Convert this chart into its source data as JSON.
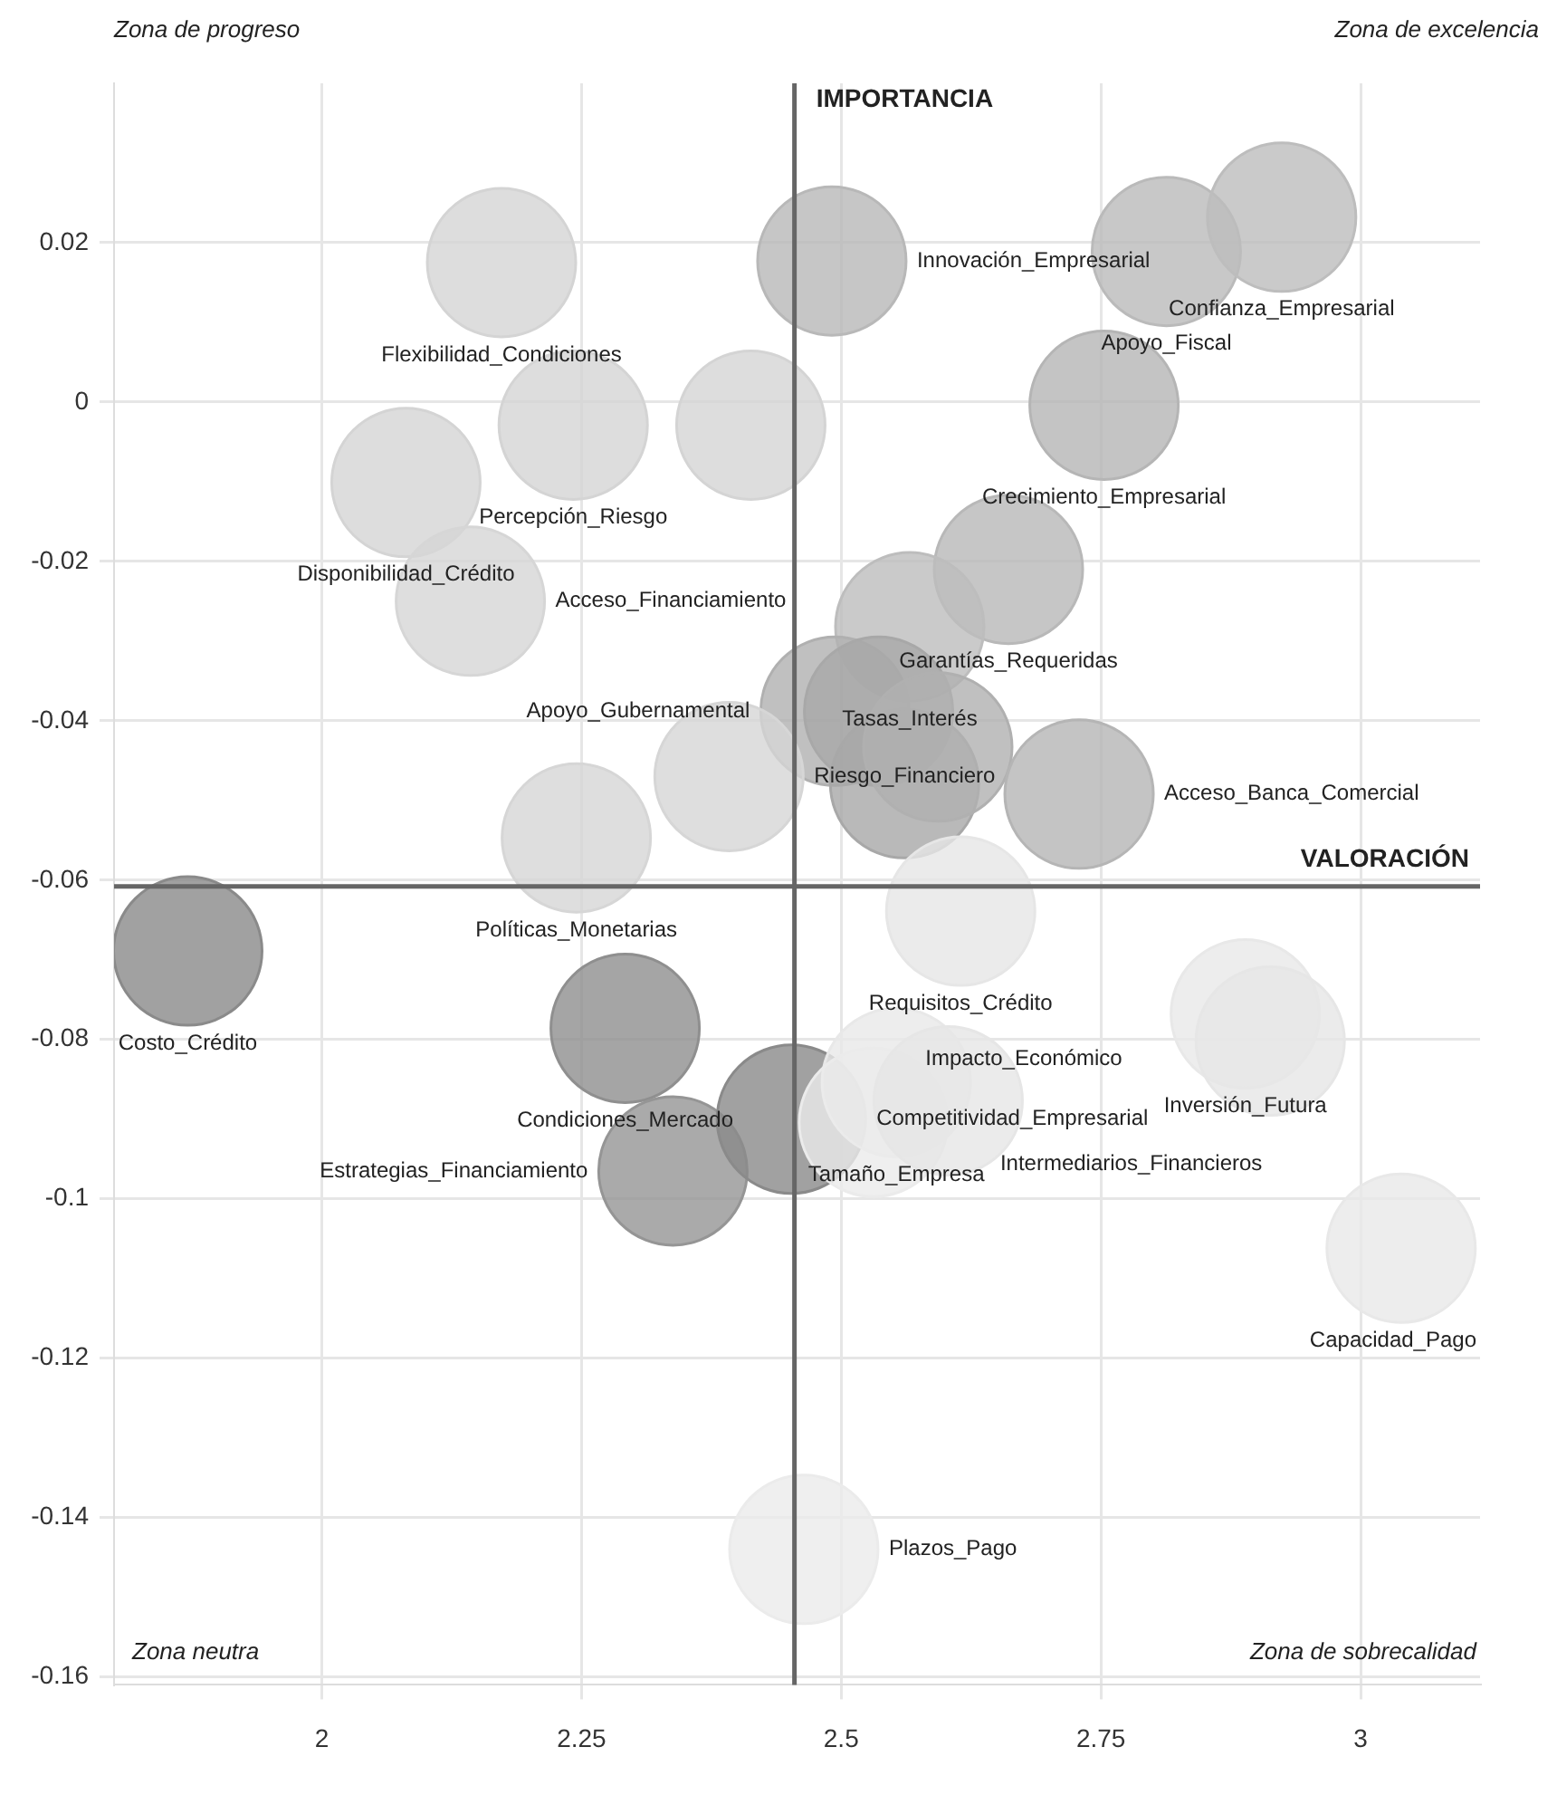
{
  "chart_data": {
    "type": "bubble",
    "x": [
      2.491,
      2.813,
      2.924,
      2.753,
      2.661,
      2.566,
      2.494,
      2.536,
      2.561,
      2.593,
      2.729,
      2.413,
      2.173,
      2.242,
      2.081,
      2.143,
      2.392,
      2.245,
      1.871,
      2.292,
      2.338,
      2.452,
      2.615,
      2.553,
      2.531,
      2.603,
      2.889,
      2.913,
      3.039,
      2.464
    ],
    "values": [
      0.0177,
      0.0189,
      0.0232,
      -0.0004,
      -0.021,
      -0.0282,
      -0.0388,
      -0.0388,
      -0.0479,
      -0.0433,
      -0.0492,
      -0.0029,
      0.0175,
      -0.0029,
      -0.0101,
      -0.025,
      -0.047,
      -0.0547,
      -0.0689,
      -0.0786,
      -0.0965,
      -0.09,
      -0.0639,
      -0.0854,
      -0.0904,
      -0.0877,
      -0.0768,
      -0.0802,
      -0.1062,
      -0.144
    ],
    "sizes": [
      1,
      1,
      1,
      1,
      1,
      1,
      1,
      1,
      1,
      1,
      1,
      1,
      1,
      1,
      1,
      1,
      1,
      1,
      1,
      1,
      1,
      1,
      1,
      1,
      1,
      1,
      1,
      1,
      1,
      1
    ],
    "colors": [
      "#b8b8b8",
      "#bababa",
      "#bdbdbd",
      "#b5b5b5",
      "#b8b8b8",
      "#bdbdbd",
      "#b0b0b0",
      "#a8a8a8",
      "#a8a8a8",
      "#b0b0b0",
      "#b5b5b5",
      "#d4d4d4",
      "#d4d4d4",
      "#d4d4d4",
      "#d4d4d4",
      "#d6d6d6",
      "#d6d6d6",
      "#d6d6d6",
      "#8a8a8a",
      "#8f8f8f",
      "#959595",
      "#8a8a8a",
      "#e6e6e6",
      "#e8e8e8",
      "#ebebeb",
      "#e6e6e6",
      "#e8e8e8",
      "#e6e6e6",
      "#e8e8e8",
      "#ebebeb"
    ],
    "xlim": [
      1.8,
      3.115
    ],
    "ylim": [
      -0.161,
      0.04
    ],
    "xticks": [
      2,
      2.25,
      2.5,
      2.75,
      3
    ],
    "yticks": [
      0.02,
      0,
      -0.02,
      -0.04,
      -0.06,
      -0.08,
      -0.1,
      -0.12,
      -0.14,
      -0.16
    ],
    "grid": true,
    "legend": false,
    "ref_lines": [
      {
        "axis": "x",
        "value": 2.455,
        "label": "IMPORTANCIA",
        "color": "#666666"
      },
      {
        "axis": "y",
        "value": -0.0608,
        "label": "VALORACIÓN",
        "color": "#666666"
      }
    ],
    "value_labels": [
      "Innovación_Empresarial",
      "Apoyo_Fiscal",
      "Confianza_Empresarial",
      "Crecimiento_Empresarial",
      "Garantías_Requeridas",
      "Tasas_Interés",
      "Apoyo_Gubernamental",
      null,
      null,
      null,
      "Acceso_Banca_Comercial",
      null,
      "Flexibilidad_Condiciones",
      "Percepción_Riesgo",
      "Disponibilidad_Crédito",
      "Acceso_Financiamiento",
      "Riesgo_Financiero",
      "Políticas_Monetarias",
      "Costo_Crédito",
      "Condiciones_Mercado",
      "Estrategias_Financiamiento",
      "Competitividad_Empresarial",
      "Requisitos_Crédito",
      "Tamaño_Empresa",
      "Impacto_Económico",
      "Intermediarios_Financieros",
      "Inversión_Futura",
      null,
      "Capacidad_Pago",
      "Plazos_Pago"
    ],
    "annotations": [
      "Zona de progreso",
      "Zona de excelencia",
      "Zona neutra",
      "Zona de sobrecalidad"
    ]
  }
}
